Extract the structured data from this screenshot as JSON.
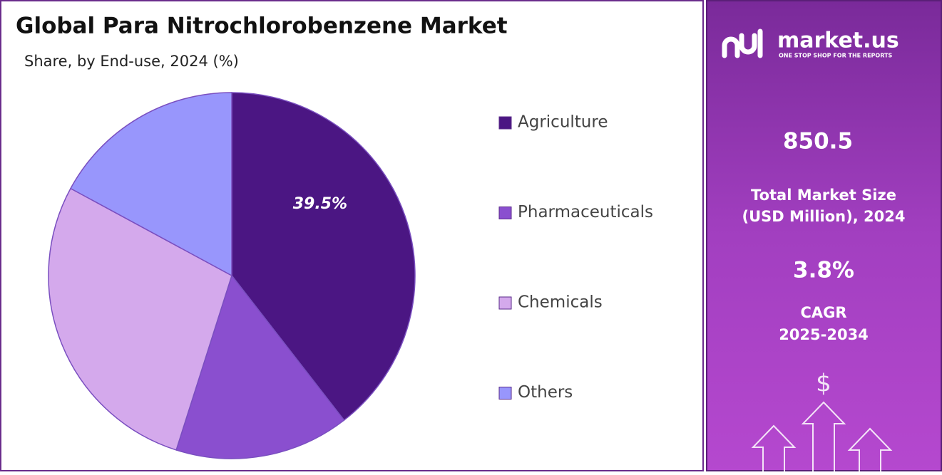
{
  "chart_data": {
    "type": "pie",
    "title": "Global Para Nitrochlorobenzene Market",
    "subtitle": "Share, by End-use, 2024 (%)",
    "categories": [
      "Agriculture",
      "Pharmaceuticals",
      "Chemicals",
      "Others"
    ],
    "values": [
      39.5,
      15.4,
      28.0,
      17.1
    ],
    "value_labels": [
      "39.5%",
      null,
      null,
      null
    ],
    "colors": [
      "#4b1683",
      "#8a4fcf",
      "#d4a9ec",
      "#9896fc"
    ],
    "legend": "right"
  },
  "sidebar": {
    "brand": "market.us",
    "tagline": "ONE STOP SHOP FOR THE REPORTS",
    "market_size": "850.5",
    "market_size_label": [
      "Total Market Size",
      "(USD Million), 2024"
    ],
    "cagr": "3.8%",
    "cagr_label": [
      "CAGR",
      "2025-2034"
    ]
  }
}
